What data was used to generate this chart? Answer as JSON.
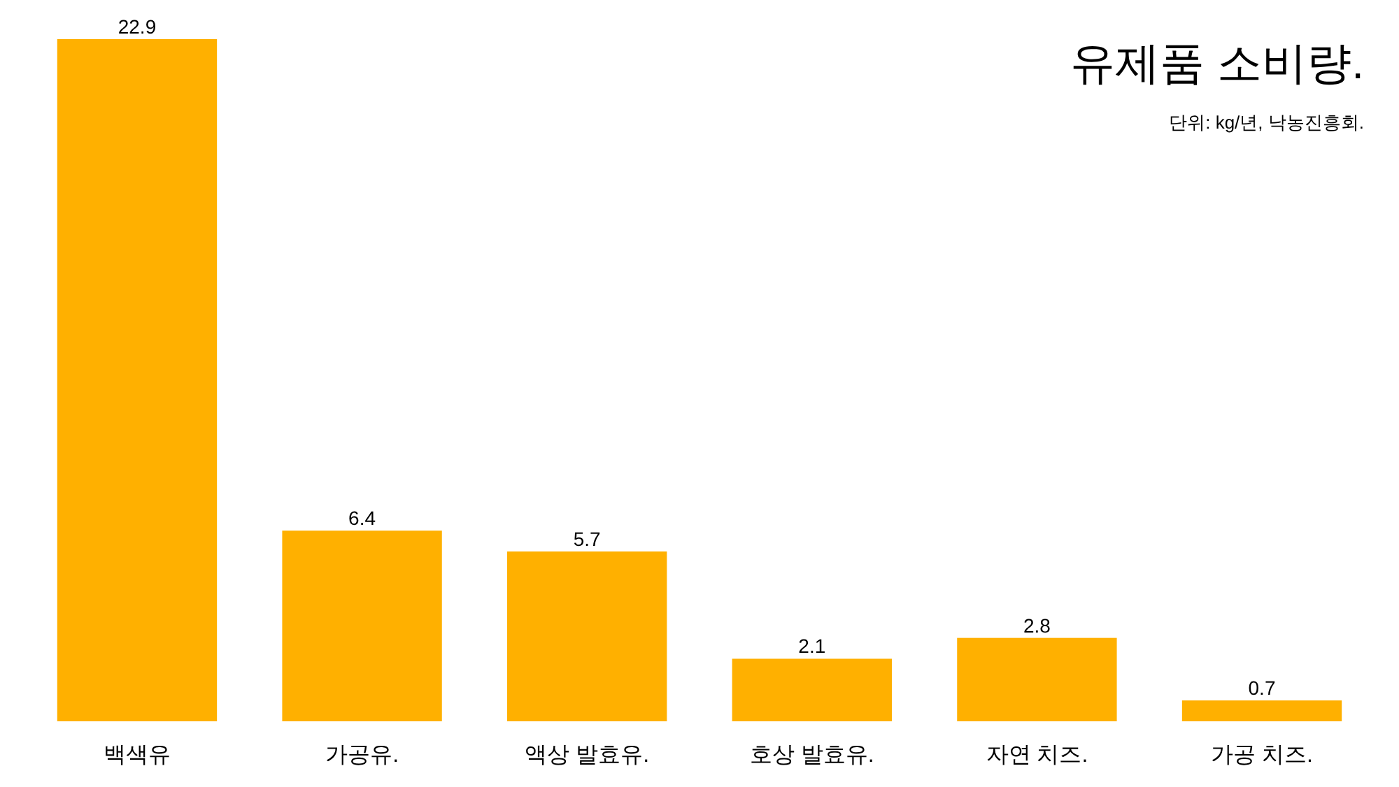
{
  "chart_data": {
    "type": "bar",
    "title": "유제품 소비량.",
    "subtitle": "단위: kg/년, 낙농진흥회.",
    "categories": [
      "백색유",
      "가공유.",
      "액상 발효유.",
      "호상 발효유.",
      "자연 치즈.",
      "가공 치즈."
    ],
    "values": [
      22.9,
      6.4,
      5.7,
      2.1,
      2.8,
      0.7
    ],
    "color": "#ffb000",
    "data_labels": true
  }
}
